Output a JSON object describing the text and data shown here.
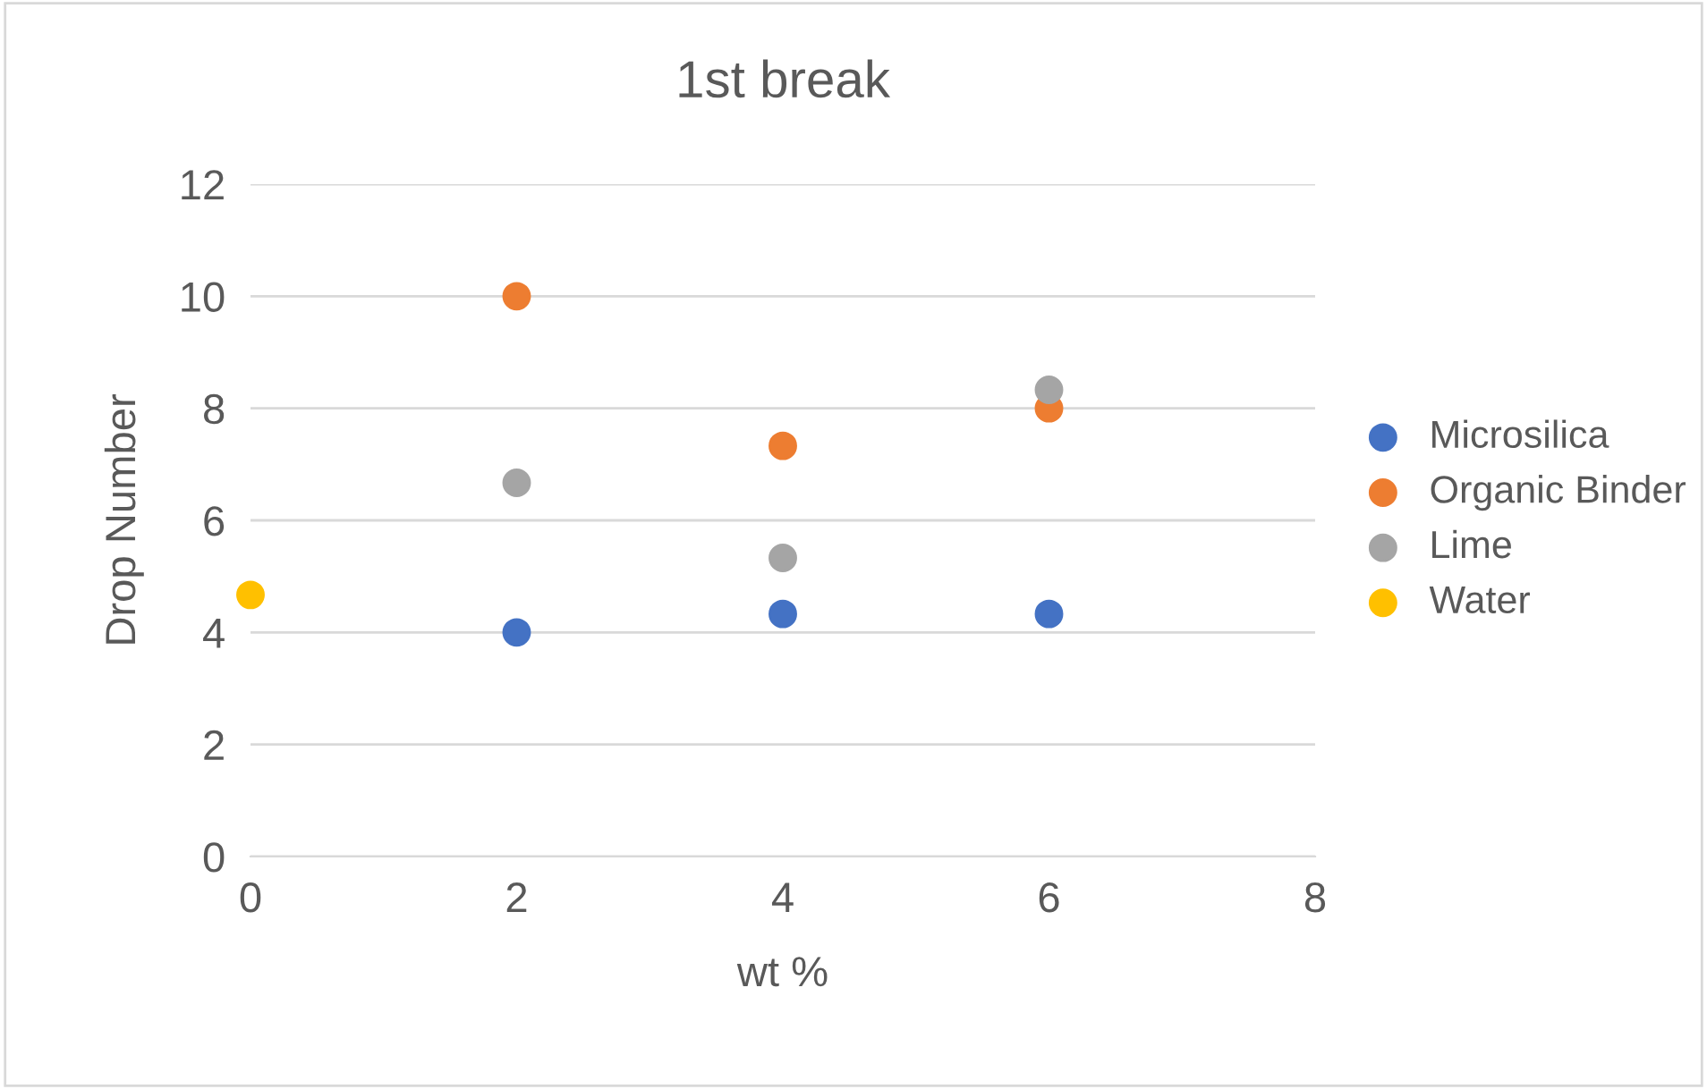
{
  "chart_data": {
    "type": "scatter",
    "title": "1st break",
    "xlabel": "wt %",
    "ylabel": "Drop Number",
    "xlim": [
      0,
      8
    ],
    "xticks": [
      0,
      2,
      4,
      6,
      8
    ],
    "ylim": [
      0,
      12
    ],
    "yticks": [
      0,
      2,
      4,
      6,
      8,
      10,
      12
    ],
    "grid": "y",
    "legend": "right",
    "marker": "circle",
    "series": [
      {
        "name": "Microsilica",
        "color": "#4472c4",
        "x": [
          2,
          4,
          6
        ],
        "values": [
          4,
          4.33,
          4.33
        ]
      },
      {
        "name": "Organic Binder",
        "color": "#ed7d31",
        "x": [
          2,
          4,
          6
        ],
        "values": [
          10,
          7.33,
          8
        ]
      },
      {
        "name": "Lime",
        "color": "#a5a5a5",
        "x": [
          2,
          4,
          6
        ],
        "values": [
          6.67,
          5.33,
          8.33
        ]
      },
      {
        "name": "Water",
        "color": "#ffc000",
        "x": [
          0
        ],
        "values": [
          4.67
        ]
      }
    ]
  }
}
